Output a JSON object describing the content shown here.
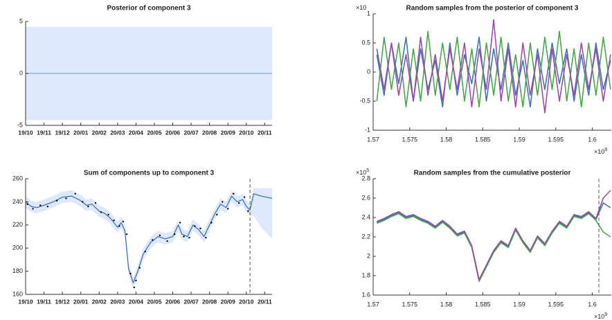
{
  "chart_data": [
    {
      "type": "line",
      "title": "Posterior of component 3",
      "x": [
        0,
        13.4
      ],
      "xlim": [
        0,
        13.4
      ],
      "xticks": [
        {
          "value": 0,
          "label": "19/10"
        },
        {
          "value": 1,
          "label": "19/11"
        },
        {
          "value": 2,
          "label": "19/12"
        },
        {
          "value": 3,
          "label": "20/01"
        },
        {
          "value": 4,
          "label": "20/02"
        },
        {
          "value": 5,
          "label": "20/03"
        },
        {
          "value": 6,
          "label": "20/04"
        },
        {
          "value": 7,
          "label": "20/05"
        },
        {
          "value": 8,
          "label": "20/06"
        },
        {
          "value": 9,
          "label": "20/07"
        },
        {
          "value": 10,
          "label": "20/08"
        },
        {
          "value": 11,
          "label": "20/09"
        },
        {
          "value": 12,
          "label": "20/10"
        },
        {
          "value": 13,
          "label": "20/11"
        }
      ],
      "ylim": [
        -5,
        5
      ],
      "yticks": [
        -5,
        0,
        5
      ],
      "band": {
        "color": "#dfe8fb",
        "lower": [
          -4.5,
          -4.5
        ],
        "upper": [
          4.5,
          4.5
        ]
      },
      "series": [
        {
          "color": "#7fa6d6",
          "values": [
            0,
            0
          ]
        }
      ]
    },
    {
      "type": "line",
      "title": "Random samples from the posterior of component 3",
      "y_multiplier": {
        "base": "×10"
      },
      "x_multiplier": {
        "base": "×10",
        "power": "9"
      },
      "x": [
        1.5705,
        1.5715,
        1.5725,
        1.5735,
        1.5745,
        1.5755,
        1.5765,
        1.5775,
        1.5785,
        1.5795,
        1.5805,
        1.5815,
        1.5825,
        1.5835,
        1.5845,
        1.5855,
        1.5865,
        1.5875,
        1.5885,
        1.5895,
        1.5905,
        1.5915,
        1.5925,
        1.5935,
        1.5945,
        1.5955,
        1.5965,
        1.5975,
        1.5985,
        1.5995,
        1.6005,
        1.6015,
        1.6025
      ],
      "xlim": [
        1.57,
        1.6026
      ],
      "xticks": [
        1.57,
        1.575,
        1.58,
        1.585,
        1.59,
        1.595,
        1.6
      ],
      "ylim": [
        -1,
        1
      ],
      "yticks": [
        -1,
        -0.5,
        0,
        0.5,
        1
      ],
      "series": [
        {
          "color": "#3a75b8",
          "values": [
            0.3,
            -0.4,
            0.5,
            -0.2,
            0.6,
            -0.5,
            0.4,
            -0.3,
            0.2,
            -0.6,
            0.5,
            -0.4,
            0.3,
            -0.2,
            0.6,
            -0.5,
            0.4,
            -0.3,
            0.5,
            -0.4,
            0.2,
            -0.6,
            0.4,
            -0.3,
            0.5,
            -0.2,
            0.4,
            -0.5,
            0.3,
            -0.4,
            0.5,
            -0.3,
            0.2
          ]
        },
        {
          "color": "#46a846",
          "values": [
            -0.5,
            0.6,
            -0.3,
            0.5,
            -0.6,
            0.4,
            -0.5,
            0.7,
            -0.4,
            0.5,
            -0.3,
            0.6,
            -0.5,
            0.4,
            -0.6,
            0.5,
            -0.4,
            0.6,
            -0.5,
            0.3,
            -0.6,
            0.5,
            -0.4,
            0.6,
            -0.3,
            0.7,
            -0.5,
            0.4,
            -0.6,
            0.5,
            -0.4,
            0.6,
            -0.3
          ]
        },
        {
          "color": "#9b4aa8",
          "values": [
            0.4,
            -0.3,
            0.5,
            -0.4,
            0.3,
            -0.5,
            0.6,
            -0.4,
            0.3,
            -0.5,
            0.4,
            -0.3,
            0.5,
            -0.6,
            0.4,
            -0.3,
            0.9,
            -0.5,
            0.4,
            -0.6,
            0.5,
            -0.4,
            0.3,
            -0.7,
            0.4,
            -0.5,
            0.3,
            -0.4,
            0.5,
            -0.3,
            0.4,
            -0.5,
            0.3
          ]
        }
      ]
    },
    {
      "type": "line",
      "title": "Sum of components up to component 3",
      "x": [
        0,
        0.3,
        0.6,
        1,
        1.5,
        2,
        2.5,
        3,
        3.3,
        3.6,
        4,
        4.3,
        4.6,
        5,
        5.2,
        5.4,
        5.6,
        5.85,
        6.1,
        6.4,
        6.8,
        7.2,
        7.6,
        8,
        8.3,
        8.5,
        8.8,
        9.1,
        9.4,
        9.7,
        10,
        10.3,
        10.6,
        10.9,
        11.2,
        11.5,
        11.8,
        12,
        12.2,
        12.4,
        12.8,
        13.4
      ],
      "xlim": [
        0,
        13.4
      ],
      "xticks": [
        {
          "value": 0,
          "label": "19/10"
        },
        {
          "value": 1,
          "label": "19/11"
        },
        {
          "value": 2,
          "label": "19/12"
        },
        {
          "value": 3,
          "label": "20/01"
        },
        {
          "value": 4,
          "label": "20/02"
        },
        {
          "value": 5,
          "label": "20/03"
        },
        {
          "value": 6,
          "label": "20/04"
        },
        {
          "value": 7,
          "label": "20/05"
        },
        {
          "value": 8,
          "label": "20/06"
        },
        {
          "value": 9,
          "label": "20/07"
        },
        {
          "value": 10,
          "label": "20/08"
        },
        {
          "value": 11,
          "label": "20/09"
        },
        {
          "value": 12,
          "label": "20/10"
        },
        {
          "value": 13,
          "label": "20/11"
        }
      ],
      "ylim": [
        160,
        260
      ],
      "yticks": [
        160,
        180,
        200,
        220,
        240,
        260
      ],
      "band": {
        "color": "#dfe8fb",
        "lower": [
          235,
          231,
          230,
          232,
          235,
          239,
          240,
          236,
          232,
          233,
          227,
          225,
          221,
          213,
          217,
          210,
          177,
          165,
          175,
          190,
          200,
          205,
          203,
          205,
          215,
          207,
          205,
          215,
          211,
          205,
          215,
          225,
          233,
          230,
          240,
          235,
          237,
          231,
          228,
          228,
          218,
          208
        ],
        "upper": [
          245,
          241,
          240,
          242,
          245,
          249,
          250,
          246,
          242,
          243,
          237,
          235,
          231,
          223,
          227,
          220,
          187,
          175,
          185,
          200,
          210,
          215,
          213,
          215,
          225,
          217,
          215,
          225,
          221,
          215,
          225,
          235,
          243,
          240,
          250,
          245,
          247,
          241,
          238,
          252,
          252,
          252
        ]
      },
      "series": [
        {
          "color": "#3a75b8",
          "values": [
            240,
            236,
            235,
            237,
            240,
            244,
            245,
            241,
            237,
            238,
            232,
            230,
            226,
            218,
            222,
            215,
            182,
            170,
            180,
            195,
            205,
            210,
            208,
            210,
            220,
            212,
            210,
            220,
            216,
            210,
            220,
            230,
            238,
            235,
            245,
            240,
            242,
            236,
            233,
            247,
            245,
            243
          ]
        }
      ],
      "points": {
        "color": "#000000",
        "x": [
          0.1,
          0.4,
          0.8,
          1.2,
          1.7,
          2.2,
          2.7,
          3.1,
          3.4,
          3.8,
          4.1,
          4.5,
          4.8,
          5.1,
          5.3,
          5.5,
          5.7,
          5.9,
          6.0,
          6.2,
          6.5,
          6.9,
          7.3,
          7.7,
          8.1,
          8.4,
          8.6,
          8.9,
          9.2,
          9.5,
          9.8,
          10.1,
          10.4,
          10.7,
          11.0,
          11.3,
          11.6,
          11.9,
          12.1
        ],
        "values": [
          238,
          234,
          237,
          236,
          241,
          243,
          247,
          240,
          236,
          239,
          231,
          229,
          224,
          219,
          223,
          212,
          178,
          166,
          172,
          183,
          197,
          207,
          211,
          206,
          212,
          222,
          210,
          209,
          219,
          217,
          209,
          222,
          229,
          240,
          234,
          247,
          239,
          244,
          232
        ]
      },
      "vline": 12.2
    },
    {
      "type": "line",
      "title": "Random samples from the cumulative posterior",
      "y_multiplier": {
        "base": "×10",
        "power": "5"
      },
      "x_multiplier": {
        "base": "×10",
        "power": "9"
      },
      "x": [
        1.5705,
        1.5715,
        1.5725,
        1.5735,
        1.5745,
        1.5755,
        1.5765,
        1.5775,
        1.5785,
        1.5795,
        1.5805,
        1.5815,
        1.5825,
        1.5835,
        1.5845,
        1.5855,
        1.5865,
        1.5875,
        1.5885,
        1.5895,
        1.5905,
        1.5915,
        1.5925,
        1.5935,
        1.5945,
        1.5955,
        1.5965,
        1.5975,
        1.5985,
        1.5995,
        1.6005,
        1.6015,
        1.6025
      ],
      "xlim": [
        1.57,
        1.6026
      ],
      "xticks": [
        1.57,
        1.575,
        1.58,
        1.585,
        1.59,
        1.595,
        1.6
      ],
      "ylim": [
        1.6,
        2.8
      ],
      "yticks": [
        1.6,
        1.8,
        2,
        2.2,
        2.4,
        2.6,
        2.8
      ],
      "series": [
        {
          "color": "#3a75b8",
          "values": [
            2.35,
            2.38,
            2.42,
            2.45,
            2.4,
            2.42,
            2.38,
            2.35,
            2.3,
            2.36,
            2.3,
            2.22,
            2.25,
            2.1,
            1.75,
            1.9,
            2.05,
            2.15,
            2.1,
            2.28,
            2.15,
            2.05,
            2.2,
            2.12,
            2.25,
            2.35,
            2.3,
            2.42,
            2.4,
            2.45,
            2.38,
            2.55,
            2.5
          ]
        },
        {
          "color": "#46a846",
          "values": [
            2.34,
            2.37,
            2.41,
            2.44,
            2.39,
            2.41,
            2.37,
            2.34,
            2.29,
            2.35,
            2.29,
            2.21,
            2.24,
            2.09,
            1.74,
            1.89,
            2.04,
            2.14,
            2.09,
            2.27,
            2.14,
            2.04,
            2.19,
            2.11,
            2.24,
            2.34,
            2.29,
            2.41,
            2.39,
            2.44,
            2.37,
            2.25,
            2.2
          ]
        },
        {
          "color": "#9b4aa8",
          "values": [
            2.36,
            2.39,
            2.43,
            2.46,
            2.41,
            2.43,
            2.39,
            2.36,
            2.31,
            2.37,
            2.31,
            2.23,
            2.26,
            2.11,
            1.76,
            1.91,
            2.06,
            2.16,
            2.11,
            2.29,
            2.16,
            2.06,
            2.21,
            2.13,
            2.26,
            2.36,
            2.31,
            2.43,
            2.41,
            2.46,
            2.39,
            2.6,
            2.68
          ]
        }
      ],
      "vline": 1.6009
    }
  ]
}
